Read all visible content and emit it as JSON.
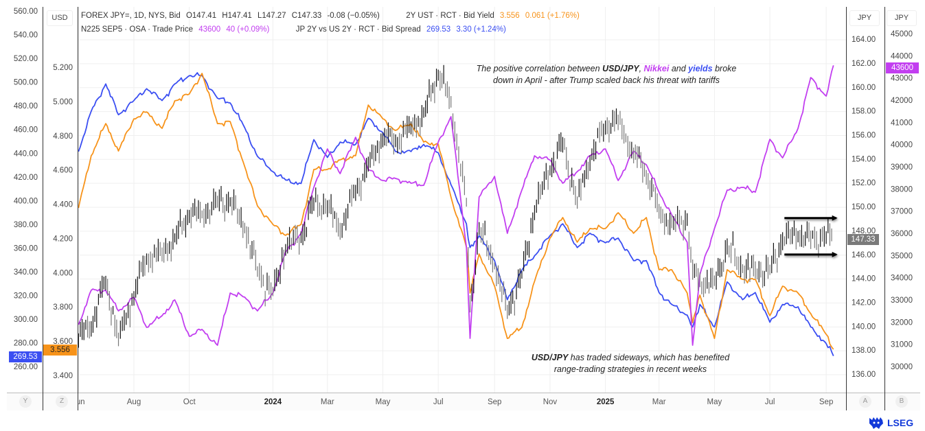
{
  "legend": {
    "line1": {
      "instrument": "FOREX JPY=, 1D, NYS, Bid",
      "open": "O147.41",
      "high": "H147.41",
      "low": "L147.27",
      "close": "C147.33",
      "change": "-0.08 (−0.05%)",
      "series2": "2Y UST · RCT · Bid Yield",
      "series2_value": "3.556",
      "series2_change": "0.061 (+1.76%)"
    },
    "line2": {
      "series3": "N225 SEP5 · OSA · Trade Price",
      "series3_value": "43600",
      "series3_change": "40 (+0.09%)",
      "series4": "JP 2Y vs US 2Y · RCT · Bid Spread",
      "series4_value": "269.53",
      "series4_change": "3.30 (+1.24%)"
    }
  },
  "axis_headers": {
    "left": "USD",
    "right1": "JPY",
    "right2": "JPY"
  },
  "last_value_labels": {
    "spread": "269.53",
    "yield": "3.556",
    "usdjpy": "147.33",
    "nikkei": "43600"
  },
  "bottom_buttons": {
    "y": "Y",
    "z": "Z",
    "a": "A",
    "b": "B"
  },
  "logo": "LSEG",
  "annotations": [
    {
      "parts": [
        "The positive correlation between ",
        "USD/JPY",
        ", ",
        "Nikkei",
        " and ",
        "yields",
        " broke"
      ],
      "line2": "down in April - after Trump scaled back his threat with tariffs"
    },
    {
      "parts": [
        "USD/JPY",
        " has traded sideways, which has benefited"
      ],
      "line2": "range-trading strategies in recent weeks"
    }
  ],
  "colors": {
    "spread": "#3a4ef2",
    "yield": "#f7931a",
    "nikkei": "#c23ef0",
    "usdjpy": "#111111",
    "last_usdjpy": "#7a7a7a",
    "grid": "#efefef"
  },
  "chart_data": {
    "type": "line",
    "title": "",
    "dates": [
      "2023-06-01",
      "2023-06-15",
      "2023-07-01",
      "2023-07-15",
      "2023-08-01",
      "2023-08-15",
      "2023-09-01",
      "2023-09-15",
      "2023-10-01",
      "2023-10-15",
      "2023-11-01",
      "2023-11-15",
      "2023-12-01",
      "2023-12-15",
      "2024-01-01",
      "2024-01-15",
      "2024-02-01",
      "2024-02-15",
      "2024-03-01",
      "2024-03-15",
      "2024-04-01",
      "2024-04-15",
      "2024-05-01",
      "2024-05-15",
      "2024-06-01",
      "2024-06-15",
      "2024-07-01",
      "2024-07-15",
      "2024-08-01",
      "2024-08-05",
      "2024-08-15",
      "2024-09-01",
      "2024-09-15",
      "2024-10-01",
      "2024-10-15",
      "2024-11-01",
      "2024-11-15",
      "2024-12-01",
      "2024-12-15",
      "2025-01-01",
      "2025-01-15",
      "2025-02-01",
      "2025-02-15",
      "2025-03-01",
      "2025-03-15",
      "2025-04-01",
      "2025-04-07",
      "2025-04-15",
      "2025-05-01",
      "2025-05-15",
      "2025-06-01",
      "2025-06-15",
      "2025-07-01",
      "2025-07-15",
      "2025-08-01",
      "2025-08-15",
      "2025-09-01",
      "2025-09-09"
    ],
    "series": [
      {
        "name": "JP 2Y vs US 2Y · RCT · Bid Spread",
        "axis": "spread",
        "style": "line",
        "values": [
          442,
          476,
          499,
          473,
          485,
          495,
          485,
          499,
          506,
          506,
          487,
          483,
          462,
          438,
          425,
          418,
          415,
          452,
          437,
          450,
          448,
          470,
          458,
          442,
          442,
          448,
          441,
          414,
          381,
          361,
          371,
          350,
          317,
          342,
          354,
          371,
          381,
          361,
          373,
          365,
          369,
          350,
          350,
          323,
          313,
          304,
          294,
          313,
          294,
          332,
          317,
          323,
          298,
          313,
          311,
          294,
          280,
          269.53
        ]
      },
      {
        "name": "2Y UST · RCT · Bid Yield",
        "axis": "yield",
        "style": "line",
        "values": [
          4.382,
          4.687,
          4.875,
          4.715,
          4.903,
          4.943,
          4.847,
          5.008,
          5.048,
          5.168,
          4.875,
          4.887,
          4.623,
          4.394,
          4.286,
          4.222,
          4.286,
          4.607,
          4.607,
          4.663,
          4.687,
          4.983,
          4.903,
          4.835,
          4.875,
          4.767,
          4.755,
          4.446,
          4.153,
          3.885,
          4.113,
          3.925,
          3.62,
          3.684,
          3.953,
          4.206,
          4.326,
          4.182,
          4.262,
          4.262,
          4.354,
          4.234,
          4.326,
          4.021,
          4.021,
          3.885,
          3.712,
          3.873,
          3.62,
          4.021,
          3.965,
          3.965,
          3.753,
          3.925,
          3.885,
          3.765,
          3.644,
          3.556
        ]
      },
      {
        "name": "N225 SEP5 · OSA · Trade Price",
        "axis": "nikkei",
        "style": "line",
        "values": [
          31916,
          33463,
          33463,
          32535,
          33154,
          31793,
          32318,
          33030,
          31391,
          31700,
          30989,
          33339,
          33154,
          32535,
          33339,
          35195,
          36030,
          38103,
          39835,
          38721,
          40360,
          38907,
          38412,
          38505,
          38288,
          38195,
          40144,
          41288,
          35412,
          31298,
          37670,
          38597,
          36030,
          37979,
          39525,
          39340,
          38288,
          38814,
          39525,
          39835,
          38412,
          39742,
          39123,
          37886,
          36865,
          35628,
          30989,
          34175,
          36247,
          37979,
          38103,
          37886,
          40268,
          39433,
          40763,
          43051,
          42216,
          43600
        ]
      },
      {
        "name": "FOREX JPY=, 1D, NYS, Bid",
        "axis": "usdjpy",
        "style": "ohlc",
        "values": [
          139.21,
          139.96,
          143.98,
          139.04,
          142.66,
          145.7,
          146.27,
          147.42,
          149.37,
          149.37,
          150.52,
          150.52,
          148.22,
          144.78,
          142.83,
          146.67,
          147.42,
          150.52,
          150.12,
          147.99,
          151.44,
          153.56,
          155.85,
          155.45,
          156.83,
          157.75,
          161.19,
          158.72,
          150.52,
          141.7,
          148.22,
          145.12,
          141.34,
          144.38,
          149.71,
          153.16,
          155.45,
          150.52,
          153.96,
          156.83,
          157.4,
          154.53,
          152.81,
          149.71,
          148.57,
          148.97,
          144.78,
          143.8,
          143.8,
          146.67,
          144.78,
          144.78,
          144.78,
          147.25,
          147.65,
          147.42,
          147.65,
          147.33
        ]
      }
    ],
    "range_annotation": {
      "start": "2025-07-17",
      "end": "2025-09-12",
      "upper": 149.1,
      "lower": 146.05,
      "axis": "usdjpy"
    },
    "axes": {
      "spread": {
        "side": "left-outer",
        "range": [
          260,
          560
        ],
        "ticks": [
          "560.00",
          "540.00",
          "520.00",
          "500.00",
          "480.00",
          "460.00",
          "440.00",
          "420.00",
          "400.00",
          "380.00",
          "360.00",
          "340.00",
          "320.00",
          "300.00",
          "280.00",
          "260.00"
        ]
      },
      "yield": {
        "side": "left-inner",
        "range": [
          3.4,
          5.2
        ],
        "ticks": [
          "5.200",
          "5.000",
          "4.800",
          "4.600",
          "4.400",
          "4.200",
          "4.000",
          "3.800",
          "3.600",
          "3.400"
        ]
      },
      "usdjpy": {
        "side": "right-inner",
        "range": [
          136,
          164
        ],
        "ticks": [
          "164.00",
          "162.00",
          "160.00",
          "158.00",
          "156.00",
          "154.00",
          "152.00",
          "150.00",
          "148.00",
          "146.00",
          "144.00",
          "142.00",
          "140.00",
          "138.00",
          "136.00"
        ]
      },
      "nikkei": {
        "side": "right-outer",
        "range": [
          30000,
          45000
        ],
        "ticks": [
          "45000",
          "44000",
          "43000",
          "42000",
          "41000",
          "40000",
          "39000",
          "38000",
          "37000",
          "36000",
          "35000",
          "34000",
          "33000",
          "32000",
          "31000",
          "30000"
        ]
      },
      "x": {
        "ticks": [
          {
            "label": "Jun",
            "date": "2023-06-01"
          },
          {
            "label": "Aug",
            "date": "2023-08-01"
          },
          {
            "label": "Oct",
            "date": "2023-10-01"
          },
          {
            "label": "2024",
            "date": "2024-01-01",
            "bold": true
          },
          {
            "label": "Mar",
            "date": "2024-03-01"
          },
          {
            "label": "May",
            "date": "2024-05-01"
          },
          {
            "label": "Jul",
            "date": "2024-07-01"
          },
          {
            "label": "Sep",
            "date": "2024-09-01"
          },
          {
            "label": "Nov",
            "date": "2024-11-01"
          },
          {
            "label": "2025",
            "date": "2025-01-01",
            "bold": true
          },
          {
            "label": "Mar",
            "date": "2025-03-01"
          },
          {
            "label": "May",
            "date": "2025-05-01"
          },
          {
            "label": "Jul",
            "date": "2025-07-01"
          },
          {
            "label": "Sep",
            "date": "2025-09-01"
          }
        ]
      }
    },
    "grid": true,
    "legend_position": "top-left"
  }
}
